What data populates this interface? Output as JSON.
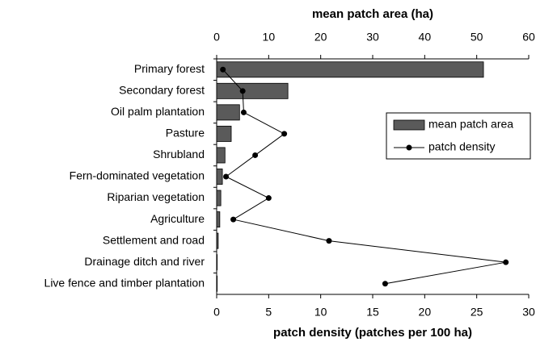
{
  "chart_data": {
    "type": "bar",
    "orientation": "horizontal",
    "x2_label": "mean patch area (ha)",
    "x_label": "patch density (patches per 100 ha)",
    "categories": [
      "Primary forest",
      "Secondary forest",
      "Oil palm plantation",
      "Pasture",
      "Shrubland",
      "Fern-dominated vegetation",
      "Riparian vegetation",
      "Agriculture",
      "Settlement and road",
      "Drainage ditch and river",
      "Live fence and timber plantation"
    ],
    "series": [
      {
        "name": "mean patch area",
        "type": "bar",
        "axis": "x2",
        "color": "#5a5a5a",
        "values": [
          51.3,
          13.7,
          4.4,
          2.8,
          1.6,
          1.1,
          0.8,
          0.6,
          0.3,
          0.1,
          0.1
        ]
      },
      {
        "name": "patch density",
        "type": "line",
        "axis": "x",
        "color": "#000000",
        "values": [
          0.6,
          2.5,
          2.6,
          6.5,
          3.7,
          0.9,
          5.0,
          1.6,
          10.8,
          27.8,
          16.2
        ]
      }
    ],
    "x2lim": [
      0,
      60
    ],
    "x2ticks": [
      0,
      10,
      20,
      30,
      40,
      50,
      60
    ],
    "xlim": [
      0,
      30
    ],
    "xticks": [
      0,
      5,
      10,
      15,
      20,
      25,
      30
    ],
    "legend": "right"
  }
}
